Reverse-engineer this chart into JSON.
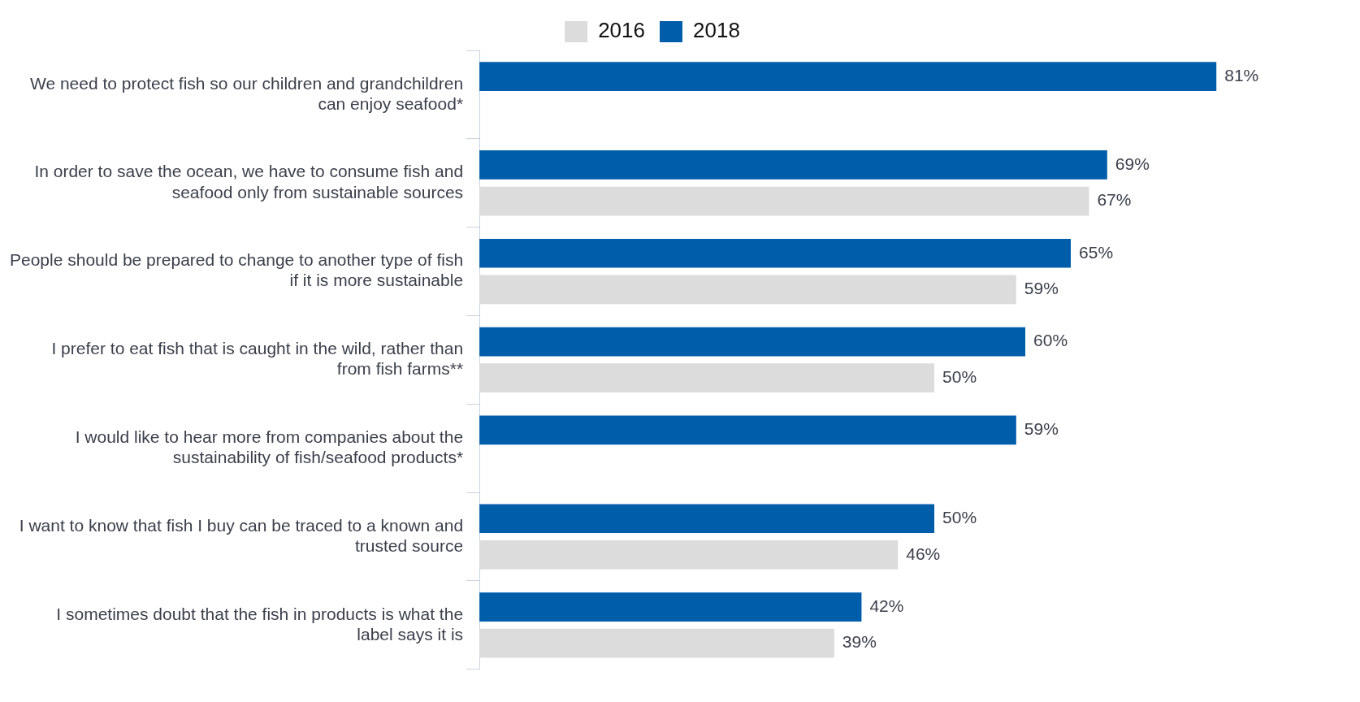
{
  "chart_data": {
    "type": "bar",
    "orientation": "horizontal",
    "legend": "top",
    "categories": [
      "We need to protect fish so our children and grandchildren can enjoy seafood*",
      "In order to save the ocean, we have to consume fish and seafood only from sustainable sources",
      "People should be prepared to change to another type of fish if it is more sustainable",
      "I prefer to eat fish that is caught in the wild, rather than from fish farms**",
      "I would like to hear more from companies about the sustainability of fish/seafood products*",
      "I want to know that fish I buy can be traced to a known and trusted source",
      "I sometimes doubt that the fish in products is what the label says it is"
    ],
    "series": [
      {
        "name": "2016",
        "color": "#dcdcdc",
        "values": [
          null,
          67,
          59,
          50,
          null,
          46,
          39
        ],
        "value_labels": [
          null,
          "67%",
          "59%",
          "50%",
          null,
          "46%",
          "39%"
        ]
      },
      {
        "name": "2018",
        "color": "#005daa",
        "values": [
          81,
          69,
          65,
          60,
          59,
          50,
          42
        ],
        "value_labels": [
          "81%",
          "69%",
          "65%",
          "60%",
          "59%",
          "50%",
          "42%"
        ]
      }
    ]
  }
}
